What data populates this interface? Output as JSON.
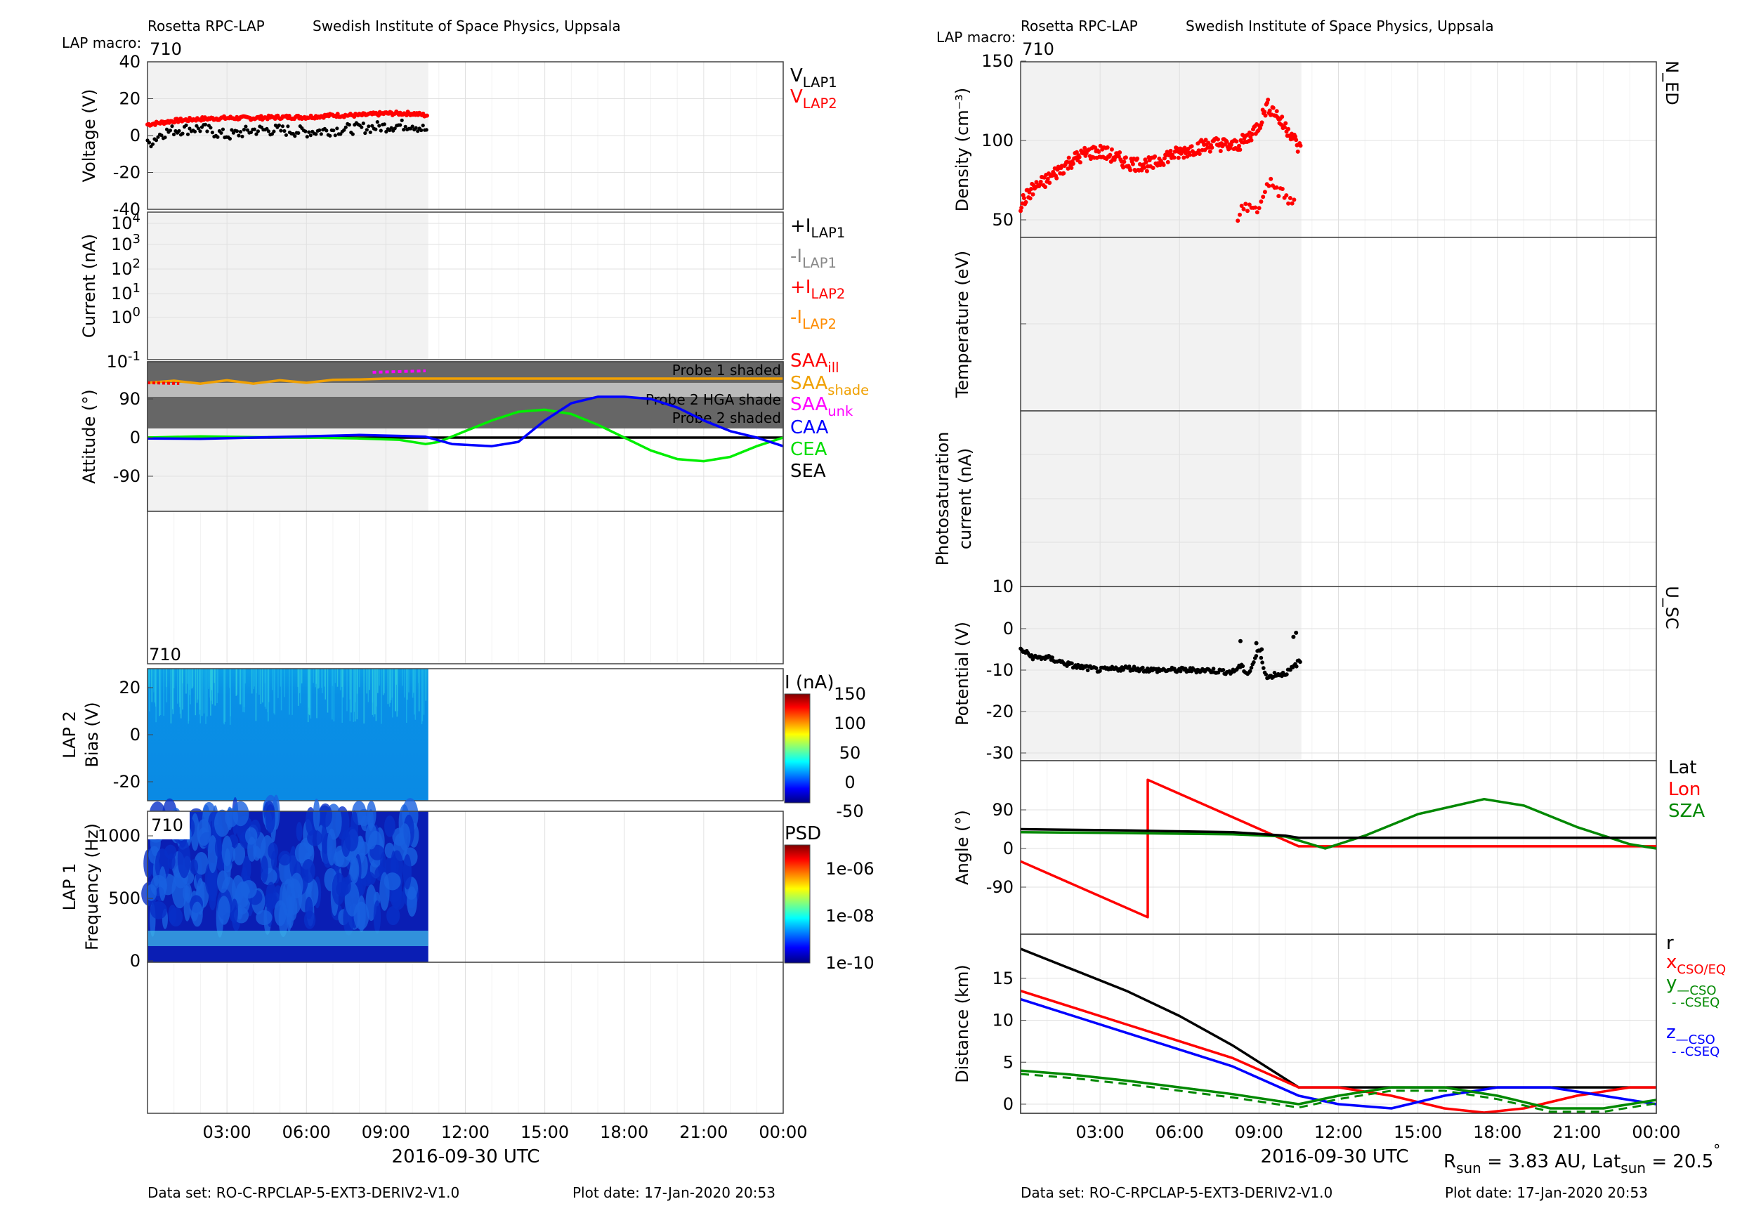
{
  "left": {
    "header_title": "Rosetta RPC-LAP",
    "header_institute": "Swedish Institute of Space Physics, Uppsala",
    "macro_label": "LAP macro:",
    "macro_value": "710",
    "xlabel": "2016-09-30 UTC",
    "footer_dataset": "Data set: RO-C-RPCLAP-5-EXT3-DERIV2-V1.0",
    "footer_plotdate": "Plot date: 17-Jan-2020 20:53"
  },
  "right": {
    "header_title": "Rosetta RPC-LAP",
    "header_institute": "Swedish Institute of Space Physics, Uppsala",
    "macro_label": "LAP macro:",
    "macro_value": "710",
    "xlabel": "2016-09-30 UTC",
    "footer_dataset": "Data set: RO-C-RPCLAP-5-EXT3-DERIV2-V1.0",
    "footer_plotdate": "Plot date: 17-Jan-2020 20:53",
    "rsun_text": "R",
    "rsun_sub": "sun",
    "rsun_value": " = 3.83 AU, Lat",
    "lat_sub": "sun",
    "lat_value": " = 20.5",
    "lat_deg": "°"
  },
  "chart_data": [
    {
      "type": "scatter",
      "panel": "voltage",
      "ylabel": "Voltage (V)",
      "ylim": [
        -40,
        40
      ],
      "yticks": [
        "40",
        "20",
        "0",
        "-20",
        "-40"
      ],
      "xticks": [
        "03:00",
        "06:00",
        "09:00",
        "12:00",
        "15:00",
        "18:00",
        "21:00",
        "00:00"
      ],
      "xrange_hours": [
        0,
        24
      ],
      "data_span_hours": [
        0,
        10.6
      ],
      "legend": [
        {
          "main": "V",
          "sub": "LAP1",
          "color": "#000000"
        },
        {
          "main": "V",
          "sub": "LAP2",
          "color": "#ff0000"
        }
      ],
      "series": [
        {
          "name": "LAP2",
          "color": "#ff0000",
          "x": [
            0,
            1,
            2,
            3,
            4,
            5,
            6,
            7,
            8,
            9,
            10,
            10.5
          ],
          "y": [
            6,
            8,
            9,
            9.5,
            9.5,
            10,
            10,
            11,
            11,
            12,
            12,
            11
          ]
        },
        {
          "name": "LAP1",
          "color": "#000000",
          "x": [
            0,
            0.5,
            1,
            2,
            3,
            4,
            5,
            6,
            7,
            8,
            9,
            10,
            10.5
          ],
          "y": [
            -5,
            1,
            3,
            4,
            0,
            3,
            3,
            2,
            3,
            4,
            5,
            6,
            3
          ]
        }
      ]
    },
    {
      "type": "line",
      "panel": "current",
      "ylabel": "Current (nA)",
      "scale": "log",
      "ytick_labels": [
        {
          "base": "10",
          "exp": "4"
        },
        {
          "base": "10",
          "exp": "3"
        },
        {
          "base": "10",
          "exp": "2"
        },
        {
          "base": "10",
          "exp": "1"
        },
        {
          "base": "10",
          "exp": "0"
        },
        {
          "base": "10",
          "exp": "-1"
        }
      ],
      "legend": [
        {
          "main": "+I",
          "sub": "LAP1",
          "color": "#000000"
        },
        {
          "main": "-I",
          "sub": "LAP1",
          "color": "#888888"
        },
        {
          "main": "+I",
          "sub": "LAP2",
          "color": "#ff0000"
        },
        {
          "main": "-I",
          "sub": "LAP2",
          "color": "#ff8c00"
        }
      ]
    },
    {
      "type": "line",
      "panel": "attitude",
      "ylabel": "Attitude (°)",
      "ylim": [
        -180,
        180
      ],
      "yticks": [
        "90",
        "0",
        "-90"
      ],
      "shade_labels": [
        "Probe 1 shaded",
        "Probe 2 HGA shade",
        "Probe 2 shaded"
      ],
      "legend": [
        {
          "main": "SAA",
          "sub": "ill",
          "color": "#ff0000"
        },
        {
          "main": "SAA",
          "sub": "shade",
          "color": "#f0a000"
        },
        {
          "main": "SAA",
          "sub": "unk",
          "color": "#ff00ff"
        },
        {
          "main": "CAA",
          "sub": "",
          "color": "#0000ff"
        },
        {
          "main": "CEA",
          "sub": "",
          "color": "#00dd00"
        },
        {
          "main": "SEA",
          "sub": "",
          "color": "#000000"
        }
      ],
      "series": [
        {
          "name": "CAA",
          "color": "#0000ff",
          "x": [
            0,
            2,
            4,
            6,
            8,
            9.5,
            10.5,
            11.5,
            13,
            14,
            15,
            16,
            17,
            18,
            19,
            20,
            21,
            22,
            23,
            24
          ],
          "y": [
            -2,
            -3,
            0,
            3,
            6,
            4,
            2,
            -15,
            -20,
            -10,
            40,
            80,
            95,
            95,
            90,
            70,
            40,
            15,
            0,
            -20
          ]
        },
        {
          "name": "CEA",
          "color": "#00ee00",
          "x": [
            0,
            2,
            4,
            6,
            8,
            9.5,
            10.5,
            11,
            12,
            13,
            14,
            15,
            16,
            17,
            18,
            19,
            20,
            21,
            22,
            23,
            24
          ],
          "y": [
            0,
            3,
            1,
            0,
            -2,
            -5,
            -15,
            -10,
            15,
            40,
            60,
            65,
            55,
            30,
            0,
            -30,
            -50,
            -55,
            -45,
            -20,
            0
          ]
        },
        {
          "name": "SAA",
          "color": "#f0a000",
          "x": [
            0,
            1,
            2,
            3,
            4,
            5,
            6,
            7,
            8,
            9,
            10,
            24
          ],
          "y": [
            130,
            135,
            128,
            136,
            128,
            136,
            130,
            137,
            138,
            140,
            140,
            140
          ]
        }
      ]
    },
    {
      "type": "heatmap",
      "panel": "lap2_bias",
      "ylabel": "LAP 2 Bias (V)",
      "yticks": [
        "20",
        "0",
        "-20"
      ],
      "colorbar_label": "I (nA)",
      "colorbar_ticks": [
        "150",
        "100",
        "50",
        "0",
        "-50"
      ],
      "macro": "710"
    },
    {
      "type": "heatmap",
      "panel": "lap1_psd",
      "ylabel": "LAP 1 Frequency (Hz)",
      "yticks": [
        "1000",
        "500",
        "0"
      ],
      "colorbar_label": "PSD",
      "colorbar_ticks": [
        "1e-06",
        "1e-08",
        "1e-10"
      ],
      "macro": "710"
    },
    {
      "type": "scatter",
      "panel": "density",
      "ylabel": "Density (cm⁻³)",
      "ylim": [
        40,
        150
      ],
      "yticks": [
        "150",
        "100",
        "50"
      ],
      "side_label": "N_ED",
      "series": [
        {
          "name": "N_ED",
          "color": "#ff0000",
          "x": [
            0,
            0.5,
            1,
            1.5,
            2,
            2.5,
            3,
            3.5,
            4,
            4.5,
            5,
            5.5,
            6,
            6.5,
            7,
            7.5,
            8,
            8.5,
            9,
            9.3,
            9.6,
            9.9,
            10.2,
            10.5
          ],
          "y": [
            60,
            70,
            75,
            82,
            88,
            92,
            93,
            90,
            86,
            85,
            85,
            90,
            92,
            95,
            97,
            98,
            96,
            100,
            110,
            122,
            118,
            110,
            105,
            95
          ]
        },
        {
          "name": "N_ED_low",
          "color": "#ff0000",
          "x": [
            8.2,
            8.5,
            8.8,
            9.1,
            9.3,
            10.3
          ],
          "y": [
            52,
            60,
            55,
            60,
            75,
            60
          ]
        }
      ]
    },
    {
      "type": "line",
      "panel": "temperature",
      "ylabel": "Temperature (eV)"
    },
    {
      "type": "line",
      "panel": "photosaturation",
      "ylabel": "Photosaturation current (nA)",
      "yticks": [
        "10"
      ]
    },
    {
      "type": "scatter",
      "panel": "potential",
      "ylabel": "Potential (V)",
      "ylim": [
        -32,
        5
      ],
      "yticks": [
        "0",
        "-10",
        "-20",
        "-30"
      ],
      "side_label": "U_SC",
      "series": [
        {
          "name": "U_SC",
          "color": "#000000",
          "x": [
            0,
            0.5,
            1,
            1.5,
            2,
            3,
            4,
            5,
            6,
            7,
            8,
            8.3,
            8.6,
            9,
            9.3,
            9.6,
            9.9,
            10.2,
            10.5
          ],
          "y": [
            -5,
            -7,
            -7,
            -8,
            -9,
            -10,
            -9.5,
            -10,
            -10,
            -10,
            -10.5,
            -9,
            -11,
            -5,
            -12,
            -11,
            -11,
            -10,
            -8
          ]
        }
      ]
    },
    {
      "type": "line",
      "panel": "angle",
      "ylabel": "Angle (°)",
      "ylim": [
        -180,
        180
      ],
      "yticks": [
        "90",
        "0",
        "-90"
      ],
      "legend": [
        {
          "main": "Lat",
          "color": "#000000"
        },
        {
          "main": "Lon",
          "color": "#ff0000"
        },
        {
          "main": "SZA",
          "color": "#008800"
        }
      ],
      "series": [
        {
          "name": "Lat",
          "color": "#000000",
          "x": [
            0,
            4,
            8,
            10,
            10.5,
            24
          ],
          "y": [
            45,
            42,
            38,
            30,
            25,
            25
          ]
        },
        {
          "name": "Lon",
          "color": "#ff0000",
          "x": [
            0,
            4.8,
            4.8,
            10.5,
            24
          ],
          "y": [
            -30,
            -160,
            160,
            5,
            5
          ]
        },
        {
          "name": "SZA",
          "color": "#008800",
          "x": [
            0,
            4,
            8,
            10,
            11.5,
            13,
            15,
            17.5,
            19,
            21,
            23,
            24
          ],
          "y": [
            38,
            36,
            33,
            28,
            0,
            30,
            80,
            115,
            100,
            50,
            10,
            0
          ]
        }
      ]
    },
    {
      "type": "line",
      "panel": "distance",
      "ylabel": "Distance (km)",
      "ylim": [
        -1,
        20
      ],
      "yticks": [
        "15",
        "10",
        "5",
        "0"
      ],
      "legend": [
        {
          "main": "r",
          "sub": "",
          "color": "#000000"
        },
        {
          "main": "x",
          "sub": "CSO/EQ",
          "color": "#ff0000"
        },
        {
          "main": "y",
          "sub": "—CSO",
          "color": "#008800"
        },
        {
          "main": "",
          "sub": "- -CSEQ",
          "color": "#008800"
        },
        {
          "main": "z",
          "sub": "—CSO",
          "color": "#0000ff"
        },
        {
          "main": "",
          "sub": "- -CSEQ",
          "color": "#0000ff"
        }
      ],
      "series": [
        {
          "name": "r",
          "color": "#000000",
          "x": [
            0,
            2,
            4,
            6,
            8,
            10.5,
            24
          ],
          "y": [
            18.5,
            16,
            13.5,
            10.5,
            7,
            2,
            2
          ]
        },
        {
          "name": "x",
          "color": "#ff0000",
          "x": [
            0,
            2,
            4,
            6,
            8,
            10.5,
            12,
            14,
            16,
            17.5,
            19,
            21,
            23,
            24
          ],
          "y": [
            13.5,
            11.5,
            9.5,
            7.5,
            5.5,
            2,
            2,
            1,
            -0.5,
            -1,
            -0.5,
            1,
            2,
            2
          ]
        },
        {
          "name": "y",
          "color": "#008800",
          "x": [
            0,
            2,
            4,
            6,
            8,
            10.5,
            12,
            14,
            16,
            18,
            20,
            22,
            24
          ],
          "y": [
            4,
            3.5,
            2.8,
            2,
            1.2,
            0,
            1,
            2,
            2,
            1,
            -0.5,
            -0.5,
            0.5
          ]
        },
        {
          "name": "z",
          "color": "#0000ff",
          "x": [
            0,
            2,
            4,
            6,
            8,
            10.5,
            12,
            14,
            16,
            18,
            20,
            22,
            24
          ],
          "y": [
            12.5,
            10.5,
            8.5,
            6.5,
            4.5,
            1,
            0,
            -0.5,
            1,
            2,
            2,
            1,
            0
          ]
        }
      ]
    }
  ]
}
